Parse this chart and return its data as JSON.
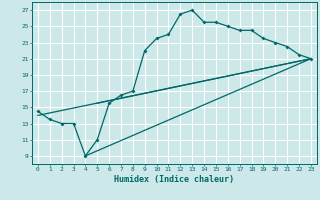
{
  "title": "",
  "xlabel": "Humidex (Indice chaleur)",
  "bg_color": "#cce8e8",
  "grid_color": "#aadddd",
  "line_color": "#006868",
  "xlim": [
    -0.5,
    23.5
  ],
  "ylim": [
    8.0,
    28.0
  ],
  "xticks": [
    0,
    1,
    2,
    3,
    4,
    5,
    6,
    7,
    8,
    9,
    10,
    11,
    12,
    13,
    14,
    15,
    16,
    17,
    18,
    19,
    20,
    21,
    22,
    23
  ],
  "yticks": [
    9,
    11,
    13,
    15,
    17,
    19,
    21,
    23,
    25,
    27
  ],
  "curve1_x": [
    0,
    1,
    2,
    3,
    4,
    5,
    6,
    7,
    8,
    9,
    10,
    11,
    12,
    13,
    14,
    15,
    16,
    17,
    18,
    19,
    20,
    21,
    22,
    23
  ],
  "curve1_y": [
    14.5,
    13.5,
    13.0,
    13.0,
    9.0,
    11.0,
    15.5,
    16.5,
    17.0,
    22.0,
    23.5,
    24.0,
    26.5,
    27.0,
    25.5,
    25.5,
    25.0,
    24.5,
    24.5,
    23.5,
    23.0,
    22.5,
    21.5,
    21.0
  ],
  "line2_x": [
    0,
    23
  ],
  "line2_y": [
    14.0,
    21.0
  ],
  "line3_x": [
    4,
    23
  ],
  "line3_y": [
    9.0,
    21.0
  ],
  "line4_x": [
    5,
    23
  ],
  "line4_y": [
    15.5,
    21.0
  ]
}
